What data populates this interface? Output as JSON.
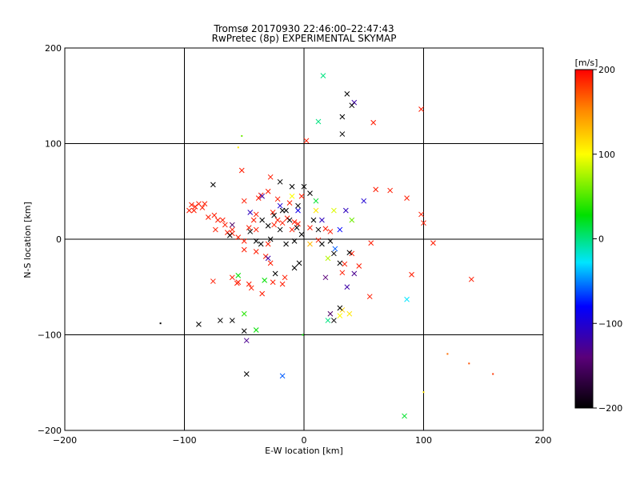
{
  "chart_data": {
    "type": "scatter",
    "title": "Tromsø 20170930 22:46:00–22:47:43",
    "subtitle": "RwPretec (8p) EXPERIMENTAL SKYMAP",
    "xlabel": "E-W location [km]",
    "ylabel": "N-S location [km]",
    "xlim": [
      -200,
      200
    ],
    "ylim": [
      -200,
      200
    ],
    "x_ticks": [
      "−200",
      "−100",
      "0",
      "100",
      "200"
    ],
    "y_ticks": [
      "200",
      "100",
      "0",
      "−100",
      "−200"
    ],
    "grid": true,
    "colorbar": {
      "label": "[m/s]",
      "range": [
        -200,
        200
      ],
      "ticks": [
        "200",
        "100",
        "0",
        "−100",
        "−200"
      ],
      "colormap": "black-purple-blue-cyan-green-yellow-red"
    },
    "markers": {
      "small": "dot",
      "large": "x"
    },
    "series": [
      {
        "values": [
          [
            -96,
            30,
            "x",
            190
          ],
          [
            -94,
            36,
            "x",
            190
          ],
          [
            -91,
            34,
            "x",
            190
          ],
          [
            -88,
            37,
            "x",
            190
          ],
          [
            -85,
            33,
            "x",
            190
          ],
          [
            -83,
            37,
            "x",
            190
          ],
          [
            -80,
            23,
            "x",
            190
          ],
          [
            -75,
            25,
            "x",
            190
          ],
          [
            -72,
            20,
            "x",
            190
          ],
          [
            -66,
            15,
            "x",
            190
          ],
          [
            -64,
            7,
            "x",
            190
          ],
          [
            -60,
            6,
            "x",
            190
          ],
          [
            -50,
            -2,
            "x",
            190
          ],
          [
            -46,
            12,
            "x",
            190
          ],
          [
            -42,
            20,
            "x",
            190
          ],
          [
            -40,
            26,
            "x",
            190
          ],
          [
            -38,
            43,
            "x",
            190
          ],
          [
            -36,
            46,
            "x",
            190
          ],
          [
            -30,
            50,
            "x",
            190
          ],
          [
            -26,
            28,
            "x",
            190
          ],
          [
            -22,
            20,
            "x",
            190
          ],
          [
            -18,
            17,
            "x",
            190
          ],
          [
            -14,
            22,
            "x",
            190
          ],
          [
            -10,
            10,
            "x",
            190
          ],
          [
            -8,
            18,
            "x",
            190
          ],
          [
            -5,
            16,
            "x",
            190
          ],
          [
            -76,
            -44,
            "x",
            190
          ],
          [
            -60,
            -40,
            "x",
            190
          ],
          [
            -56,
            -46,
            "x",
            190
          ],
          [
            -46,
            -47,
            "x",
            190
          ],
          [
            -44,
            -51,
            "x",
            190
          ],
          [
            -35,
            -57,
            "x",
            190
          ],
          [
            -26,
            -45,
            "x",
            190
          ],
          [
            -18,
            -47,
            "x",
            190
          ],
          [
            -16,
            -40,
            "x",
            190
          ],
          [
            -50,
            -11,
            "x",
            190
          ],
          [
            -40,
            -13,
            "x",
            190
          ],
          [
            -32,
            -18,
            "x",
            190
          ],
          [
            -28,
            -25,
            "x",
            190
          ],
          [
            5,
            12,
            "x",
            190
          ],
          [
            18,
            11,
            "x",
            190
          ],
          [
            12,
            -1,
            "x",
            190
          ],
          [
            32,
            -35,
            "x",
            190
          ],
          [
            34,
            -26,
            "x",
            190
          ],
          [
            40,
            -15,
            "x",
            190
          ],
          [
            56,
            -4,
            "x",
            190
          ],
          [
            60,
            52,
            "x",
            190
          ],
          [
            72,
            51,
            "x",
            190
          ],
          [
            86,
            43,
            "x",
            190
          ],
          [
            98,
            26,
            "x",
            190
          ],
          [
            100,
            17,
            "x",
            190
          ],
          [
            108,
            -4,
            "x",
            190
          ],
          [
            90,
            -37,
            "x",
            190
          ],
          [
            140,
            -42,
            "x",
            190
          ],
          [
            98,
            136,
            "x",
            190
          ],
          [
            58,
            122,
            "x",
            190
          ],
          [
            2,
            103,
            "x",
            190
          ],
          [
            -28,
            65,
            "x",
            190
          ],
          [
            -52,
            72,
            "x",
            190
          ],
          [
            -55,
            -45,
            "x",
            190
          ],
          [
            -22,
            42,
            "x",
            190
          ],
          [
            -12,
            38,
            "x",
            190
          ],
          [
            -2,
            45,
            "x",
            190
          ],
          [
            -40,
            10,
            "x",
            190
          ],
          [
            -55,
            2,
            "x",
            190
          ],
          [
            -92,
            30,
            "x",
            190
          ],
          [
            -68,
            20,
            "x",
            190
          ],
          [
            -74,
            10,
            "x",
            190
          ],
          [
            -60,
            10,
            "x",
            190
          ],
          [
            22,
            8,
            "x",
            190
          ],
          [
            -50,
            40,
            "x",
            190
          ],
          [
            -25,
            15,
            "x",
            190
          ],
          [
            -30,
            -5,
            "x",
            190
          ],
          [
            46,
            -28,
            "x",
            190
          ],
          [
            55,
            -60,
            "x",
            190
          ],
          [
            16,
            171,
            "x",
            0
          ],
          [
            12,
            123,
            "x",
            0
          ],
          [
            42,
            143,
            "x",
            -120
          ],
          [
            20,
            -85,
            "x",
            0
          ],
          [
            22,
            -78,
            "x",
            -150
          ],
          [
            -40,
            -95,
            "x",
            30
          ],
          [
            -55,
            -38,
            "x",
            30
          ],
          [
            -33,
            -43,
            "x",
            30
          ],
          [
            10,
            40,
            "x",
            20
          ],
          [
            -50,
            -78,
            "x",
            40
          ],
          [
            -48,
            -106,
            "x",
            -130
          ],
          [
            -18,
            -143,
            "x",
            -60
          ],
          [
            84,
            -185,
            "x",
            20
          ],
          [
            86,
            -63,
            "x",
            -30
          ],
          [
            -30,
            -20,
            "x",
            -120
          ],
          [
            -35,
            45,
            "x",
            -120
          ],
          [
            -20,
            35,
            "x",
            -100
          ],
          [
            -5,
            30,
            "x",
            -90
          ],
          [
            15,
            20,
            "x",
            -110
          ],
          [
            30,
            10,
            "x",
            -80
          ],
          [
            36,
            -50,
            "x",
            -120
          ],
          [
            42,
            -36,
            "x",
            -130
          ],
          [
            18,
            -40,
            "x",
            -140
          ],
          [
            50,
            40,
            "x",
            -100
          ],
          [
            -60,
            15,
            "x",
            -150
          ],
          [
            -45,
            28,
            "x",
            -110
          ],
          [
            35,
            30,
            "x",
            -110
          ],
          [
            26,
            -10,
            "x",
            -60
          ],
          [
            32,
            -74,
            "x",
            120
          ],
          [
            38,
            -78,
            "x",
            110
          ],
          [
            30,
            -80,
            "x",
            100
          ],
          [
            10,
            30,
            "x",
            110
          ],
          [
            25,
            30,
            "x",
            90
          ],
          [
            -10,
            45,
            "x",
            100
          ],
          [
            20,
            -20,
            "x",
            80
          ],
          [
            40,
            20,
            "x",
            60
          ],
          [
            5,
            -5,
            "x",
            130
          ],
          [
            36,
            152,
            "x",
            -200
          ],
          [
            40,
            140,
            "x",
            -200
          ],
          [
            32,
            128,
            "x",
            -200
          ],
          [
            32,
            110,
            "x",
            -200
          ],
          [
            -88,
            -89,
            "x",
            -200
          ],
          [
            -70,
            -85,
            "x",
            -200
          ],
          [
            -76,
            57,
            "x",
            -200
          ],
          [
            -48,
            -141,
            "x",
            -200
          ],
          [
            0,
            55,
            "x",
            -200
          ],
          [
            5,
            48,
            "x",
            -200
          ],
          [
            -10,
            55,
            "x",
            -200
          ],
          [
            -20,
            60,
            "x",
            -200
          ],
          [
            -5,
            35,
            "x",
            -200
          ],
          [
            -15,
            30,
            "x",
            -200
          ],
          [
            -25,
            25,
            "x",
            -200
          ],
          [
            -35,
            20,
            "x",
            -200
          ],
          [
            -2,
            5,
            "x",
            -200
          ],
          [
            -8,
            -2,
            "x",
            -200
          ],
          [
            -15,
            -5,
            "x",
            -200
          ],
          [
            -20,
            10,
            "x",
            -200
          ],
          [
            -28,
            0,
            "x",
            -200
          ],
          [
            -40,
            -2,
            "x",
            -200
          ],
          [
            -45,
            8,
            "x",
            -200
          ],
          [
            8,
            20,
            "x",
            -200
          ],
          [
            15,
            -5,
            "x",
            -200
          ],
          [
            25,
            -15,
            "x",
            -200
          ],
          [
            30,
            -25,
            "x",
            -200
          ],
          [
            38,
            -14,
            "x",
            -200
          ],
          [
            30,
            -72,
            "x",
            -200
          ],
          [
            25,
            -85,
            "x",
            -200
          ],
          [
            -62,
            4,
            "x",
            -200
          ],
          [
            -12,
            20,
            "x",
            -200
          ],
          [
            -24,
            -36,
            "x",
            -200
          ],
          [
            -8,
            -30,
            "x",
            -200
          ],
          [
            -4,
            -25,
            "x",
            -200
          ],
          [
            -18,
            30,
            "x",
            -200
          ],
          [
            -6,
            12,
            "x",
            -200
          ],
          [
            -30,
            14,
            "x",
            -200
          ],
          [
            -36,
            -5,
            "x",
            -200
          ],
          [
            12,
            10,
            "x",
            -200
          ],
          [
            22,
            -2,
            "x",
            -200
          ],
          [
            -60,
            -85,
            "x",
            -200
          ],
          [
            -50,
            -96,
            "x",
            -200
          ],
          [
            -120,
            -88,
            "dot",
            -200
          ],
          [
            158,
            -141,
            "dot",
            180
          ],
          [
            100,
            -160,
            "dot",
            110
          ],
          [
            120,
            -120,
            "dot",
            160
          ],
          [
            138,
            -130,
            "dot",
            170
          ],
          [
            -1,
            -100,
            "dot",
            30
          ],
          [
            -55,
            96,
            "dot",
            110
          ],
          [
            -52,
            108,
            "dot",
            60
          ]
        ]
      }
    ]
  }
}
